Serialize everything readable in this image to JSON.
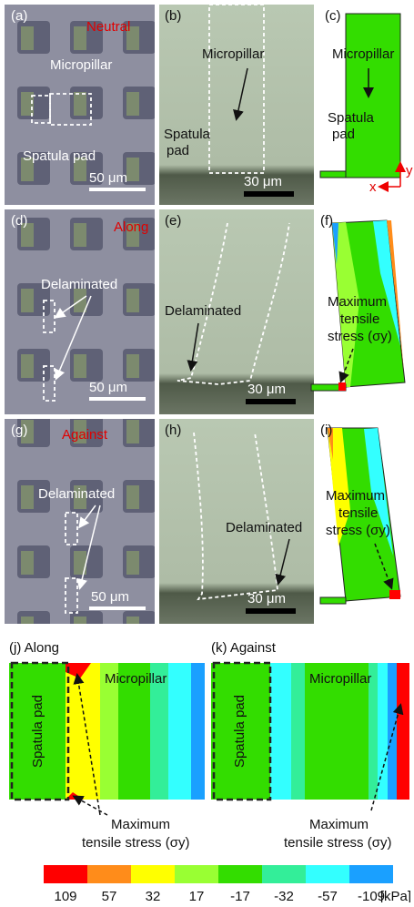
{
  "panels": {
    "a": {
      "label": "(a)",
      "tag": "Neutral",
      "micropillar": "Micropillar",
      "spatula": "Spatula pad",
      "scale": "50 μm"
    },
    "b": {
      "label": "(b)",
      "micropillar": "Micropillar",
      "spatula": [
        "Spatula",
        "pad"
      ],
      "scale": "30 μm"
    },
    "c": {
      "label": "(c)",
      "micropillar": "Micropillar",
      "spatula": [
        "Spatula",
        "pad"
      ],
      "axis_y": "y",
      "axis_x": "x"
    },
    "d": {
      "label": "(d)",
      "tag": "Along",
      "note": "Delaminated",
      "scale": "50 μm"
    },
    "e": {
      "label": "(e)",
      "note": "Delaminated",
      "scale": "30 μm"
    },
    "f": {
      "label": "(f)",
      "note": [
        "Maximum",
        "tensile",
        "stress (σy)"
      ]
    },
    "g": {
      "label": "(g)",
      "tag": "Against",
      "note": "Delaminated",
      "scale": "50 μm"
    },
    "h": {
      "label": "(h)",
      "note": "Delaminated",
      "scale": "30 μm"
    },
    "i": {
      "label": "(i)",
      "note": [
        "Maximum",
        "tensile",
        "stress (σy)"
      ]
    },
    "j": {
      "label": "(j) Along",
      "spatula": "Spatula pad",
      "micropillar": "Micropillar",
      "note": [
        "Maximum",
        "tensile stress (σy)"
      ]
    },
    "k": {
      "label": "(k) Against",
      "spatula": "Spatula pad",
      "micropillar": "Micropillar",
      "note": [
        "Maximum",
        "tensile stress (σy)"
      ]
    }
  },
  "colorbar": {
    "labels": [
      "109",
      "57",
      "32",
      "17",
      "-17",
      "-32",
      "-57",
      "-109"
    ],
    "colors": [
      "#ff0000",
      "#ff8c1a",
      "#ffff00",
      "#99ff33",
      "#33dd00",
      "#33ee99",
      "#33ffff",
      "#1aa0ff"
    ],
    "unit": "[kPa]"
  }
}
